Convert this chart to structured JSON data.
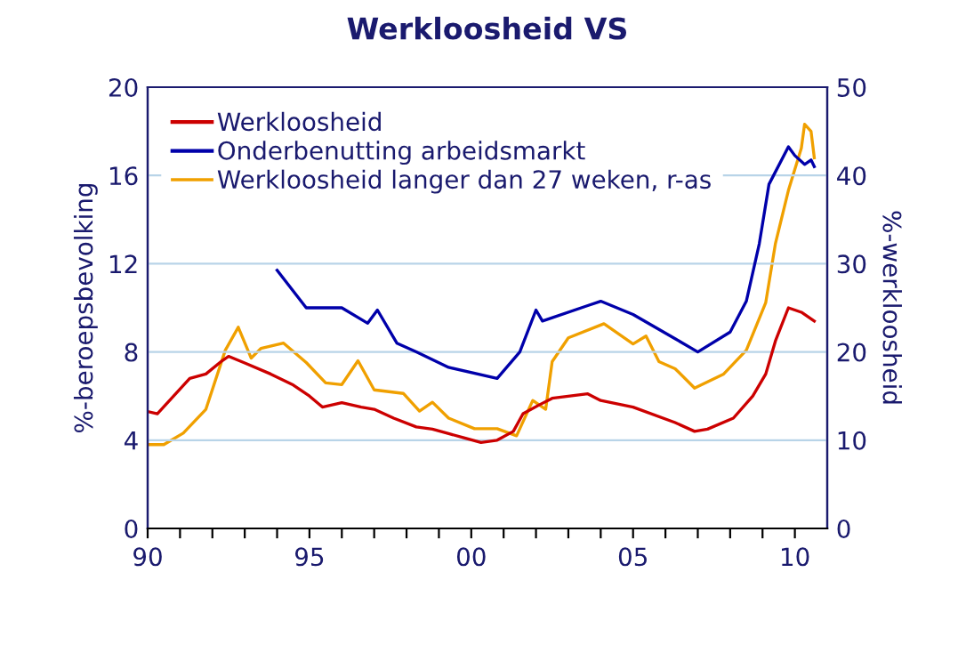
{
  "chart_data": {
    "type": "line",
    "title": "Werkloosheid VS",
    "ylabel": "%-beroepsbevolking",
    "y2label": "%-werkloosheid",
    "xlim": [
      1990,
      2011
    ],
    "xticks": [
      {
        "value": 1990,
        "label": "90"
      },
      {
        "value": 1991,
        "label": null
      },
      {
        "value": 1992,
        "label": null
      },
      {
        "value": 1993,
        "label": null
      },
      {
        "value": 1994,
        "label": null
      },
      {
        "value": 1995,
        "label": "95"
      },
      {
        "value": 1996,
        "label": null
      },
      {
        "value": 1997,
        "label": null
      },
      {
        "value": 1998,
        "label": null
      },
      {
        "value": 1999,
        "label": null
      },
      {
        "value": 2000,
        "label": "00"
      },
      {
        "value": 2001,
        "label": null
      },
      {
        "value": 2002,
        "label": null
      },
      {
        "value": 2003,
        "label": null
      },
      {
        "value": 2004,
        "label": null
      },
      {
        "value": 2005,
        "label": "05"
      },
      {
        "value": 2006,
        "label": null
      },
      {
        "value": 2007,
        "label": null
      },
      {
        "value": 2008,
        "label": null
      },
      {
        "value": 2009,
        "label": null
      },
      {
        "value": 2010,
        "label": "10"
      }
    ],
    "ylim": [
      0,
      20
    ],
    "yticks": [
      0,
      4,
      8,
      12,
      16,
      20
    ],
    "y2lim": [
      0,
      50
    ],
    "y2ticks": [
      0,
      10,
      20,
      30,
      40,
      50
    ],
    "grid": "y",
    "legend": "top left",
    "line_style": "solid",
    "marker": "none",
    "series": [
      {
        "name": "Werkloosheid",
        "color": "#cc0000",
        "x": [
          1990,
          1990.3,
          1991.3,
          1991.8,
          1992.3,
          1992.5,
          1993,
          1993.8,
          1994.5,
          1995,
          1995.4,
          1996,
          1996.6,
          1997,
          1997.6,
          1998.3,
          1998.8,
          1999.3,
          1999.8,
          2000.3,
          2000.8,
          2001.3,
          2001.6,
          2002.1,
          2002.5,
          2003.6,
          2004,
          2005,
          2006.3,
          2006.9,
          2007.3,
          2008.1,
          2008.7,
          2009.1,
          2009.4,
          2009.8,
          2010.2,
          2010.6
        ],
        "values": [
          5.3,
          5.2,
          6.8,
          7.0,
          7.6,
          7.8,
          7.5,
          7.0,
          6.5,
          6.0,
          5.5,
          5.7,
          5.5,
          5.4,
          5.0,
          4.6,
          4.5,
          4.3,
          4.1,
          3.9,
          4.0,
          4.4,
          5.2,
          5.6,
          5.9,
          6.1,
          5.8,
          5.5,
          4.8,
          4.4,
          4.5,
          5.0,
          6.0,
          7.0,
          8.5,
          10.0,
          9.8,
          9.4
        ]
      },
      {
        "name": "Onderbenutting arbeidsmarkt",
        "color": "#0000aa",
        "x": [
          1994.0,
          1994.9,
          1996,
          1996.8,
          1997.1,
          1997.7,
          1998.3,
          1999.3,
          2000.8,
          2001.5,
          2002.0,
          2002.2,
          2003.6,
          2004,
          2005,
          2006.3,
          2007,
          2008,
          2008.5,
          2008.9,
          2009.2,
          2009.8,
          2010.0,
          2010.3,
          2010.5,
          2010.6
        ],
        "values": [
          11.7,
          10.0,
          10.0,
          9.3,
          9.9,
          8.4,
          8.0,
          7.3,
          6.8,
          8.0,
          9.9,
          9.4,
          10.1,
          10.3,
          9.7,
          8.6,
          8.0,
          8.9,
          10.3,
          12.9,
          15.6,
          17.3,
          16.9,
          16.5,
          16.7,
          16.4
        ]
      },
      {
        "name": "Werkloosheid langer dan 27 weken, r-as",
        "color": "#f0a000",
        "axis": "y2",
        "x": [
          1990,
          1990.5,
          1991.1,
          1991.8,
          1992.4,
          1992.8,
          1993.2,
          1993.5,
          1994.2,
          1994.9,
          1995.5,
          1996,
          1996.5,
          1997,
          1997.9,
          1998.4,
          1998.8,
          1999.3,
          2000.1,
          2000.8,
          2001.4,
          2001.9,
          2002.3,
          2002.5,
          2003,
          2004.1,
          2005,
          2005.4,
          2005.8,
          2006.3,
          2006.9,
          2007.8,
          2008.5,
          2009.1,
          2009.4,
          2009.8,
          2010.2,
          2010.3,
          2010.5,
          2010.6
        ],
        "values": [
          9.5,
          9.5,
          10.8,
          13.5,
          20.2,
          22.8,
          19.3,
          20.4,
          21.0,
          18.8,
          16.5,
          16.3,
          19.0,
          15.7,
          15.3,
          13.3,
          14.3,
          12.5,
          11.3,
          11.3,
          10.5,
          14.5,
          13.5,
          18.9,
          21.6,
          23.2,
          20.9,
          21.8,
          18.9,
          18.1,
          15.9,
          17.5,
          20.2,
          25.6,
          32.3,
          38.3,
          43.1,
          45.8,
          45.0,
          42.0
        ]
      }
    ]
  }
}
